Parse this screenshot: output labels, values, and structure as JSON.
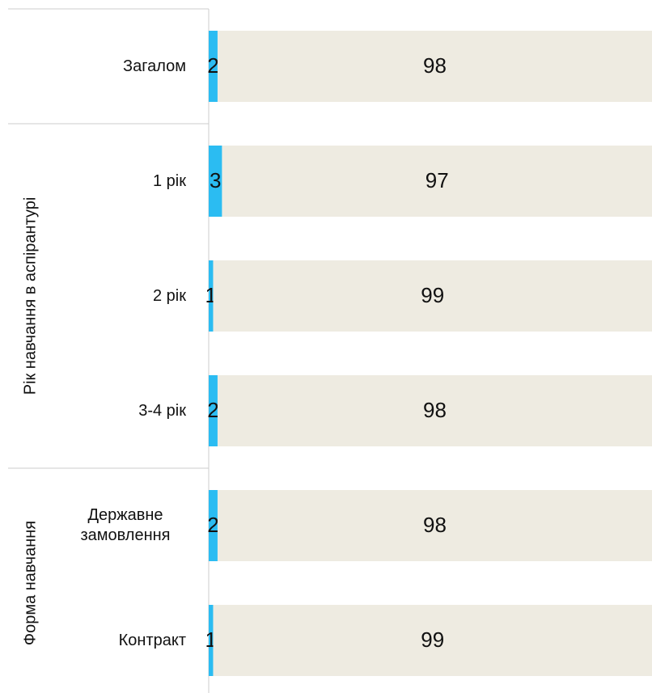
{
  "chart_data": {
    "type": "stacked-bar-horizontal",
    "categories": [
      "Загалом",
      "1 рік",
      "2 рік",
      "3-4 рік",
      "Державне замовлення",
      "Контракт"
    ],
    "groups": [
      null,
      "Рік навчання в аспірантурі",
      "Рік навчання в аспірантурі",
      "Рік навчання в аспірантурі",
      "Форма навчання",
      "Форма навчання"
    ],
    "series": [
      {
        "color": "#2bbcf2",
        "values": [
          2,
          3,
          1,
          2,
          2,
          1
        ]
      },
      {
        "color": "#eeebe1",
        "values": [
          98,
          97,
          99,
          98,
          98,
          99
        ]
      }
    ],
    "xlim": [
      0,
      100
    ]
  }
}
